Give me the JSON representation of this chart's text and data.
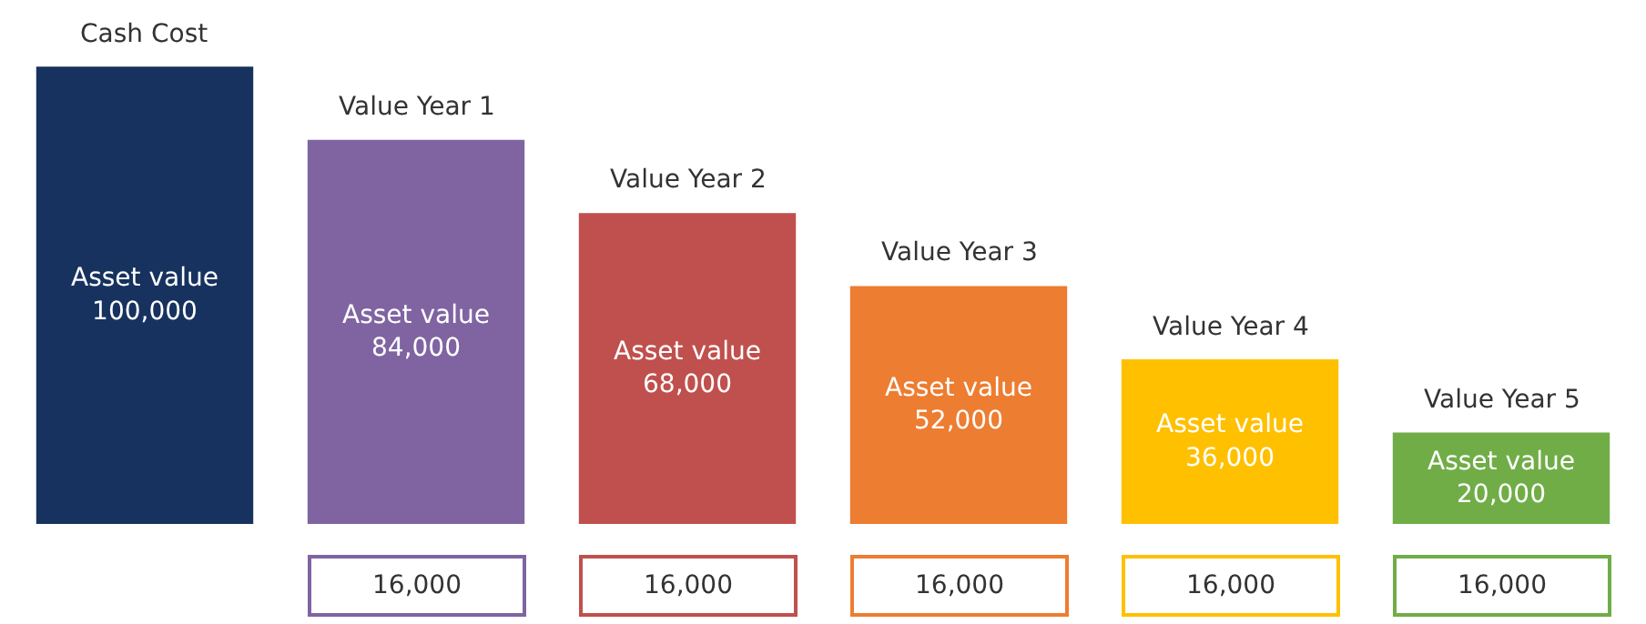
{
  "chart_data": {
    "type": "bar",
    "categories": [
      "Cash Cost",
      "Value Year 1",
      "Value Year 2",
      "Value Year 3",
      "Value Year 4",
      "Value Year 5"
    ],
    "values": [
      100000,
      84000,
      68000,
      52000,
      36000,
      20000
    ],
    "colors": [
      "#17325f",
      "#8064a2",
      "#c0504d",
      "#ed7d31",
      "#ffc000",
      "#70ad47"
    ],
    "value_labels": [
      "Asset value\n100,000",
      "Asset value\n84,000",
      "Asset value\n68,000",
      "Asset value\n52,000",
      "Asset value\n36,000",
      "Asset value\n20,000"
    ],
    "annotations": [
      "16,000",
      "16,000",
      "16,000",
      "16,000",
      "16,000"
    ]
  }
}
